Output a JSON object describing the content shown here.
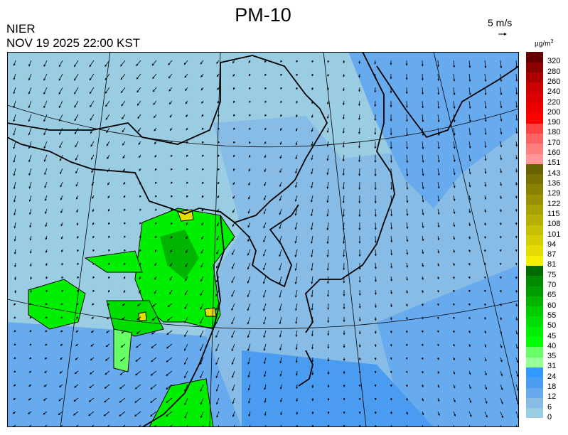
{
  "header": {
    "title": "PM-10",
    "org": "NIER",
    "datetime": "NOV 19 2025 22:00 KST"
  },
  "wind_scale": {
    "label": "5 m/s",
    "icon": "arrow-right-icon"
  },
  "legend": {
    "unit": "µg/m",
    "unit_sup": "3",
    "labels": [
      "0",
      "6",
      "12",
      "18",
      "24",
      "31",
      "35",
      "40",
      "45",
      "50",
      "55",
      "60",
      "65",
      "70",
      "75",
      "81",
      "87",
      "94",
      "101",
      "108",
      "115",
      "122",
      "129",
      "136",
      "143",
      "151",
      "160",
      "170",
      "180",
      "190",
      "200",
      "220",
      "240",
      "260",
      "280",
      "320"
    ],
    "colors": [
      "#9accE2",
      "#86bce6",
      "#68aaee",
      "#4a9cf0",
      "#3399ff",
      "#99ff99",
      "#66ff66",
      "#00ff00",
      "#00ee00",
      "#00dd00",
      "#00cc00",
      "#00b400",
      "#009c00",
      "#008a00",
      "#006c00",
      "#f2f000",
      "#e4de00",
      "#d6cf00",
      "#c6c000",
      "#b8b000",
      "#a8a200",
      "#989200",
      "#888200",
      "#787200",
      "#686200",
      "#ff9999",
      "#ff7e7e",
      "#ff6464",
      "#ff4444",
      "#ff0000",
      "#ee0000",
      "#dd0000",
      "#cc0000",
      "#ac0000",
      "#8c0000",
      "#660000"
    ]
  },
  "map": {
    "background": "#9accE2",
    "ocean_blue": "#68aaee",
    "mid_blue": "#86bce6",
    "green": "#00ee00",
    "light_green": "#66ff66"
  }
}
